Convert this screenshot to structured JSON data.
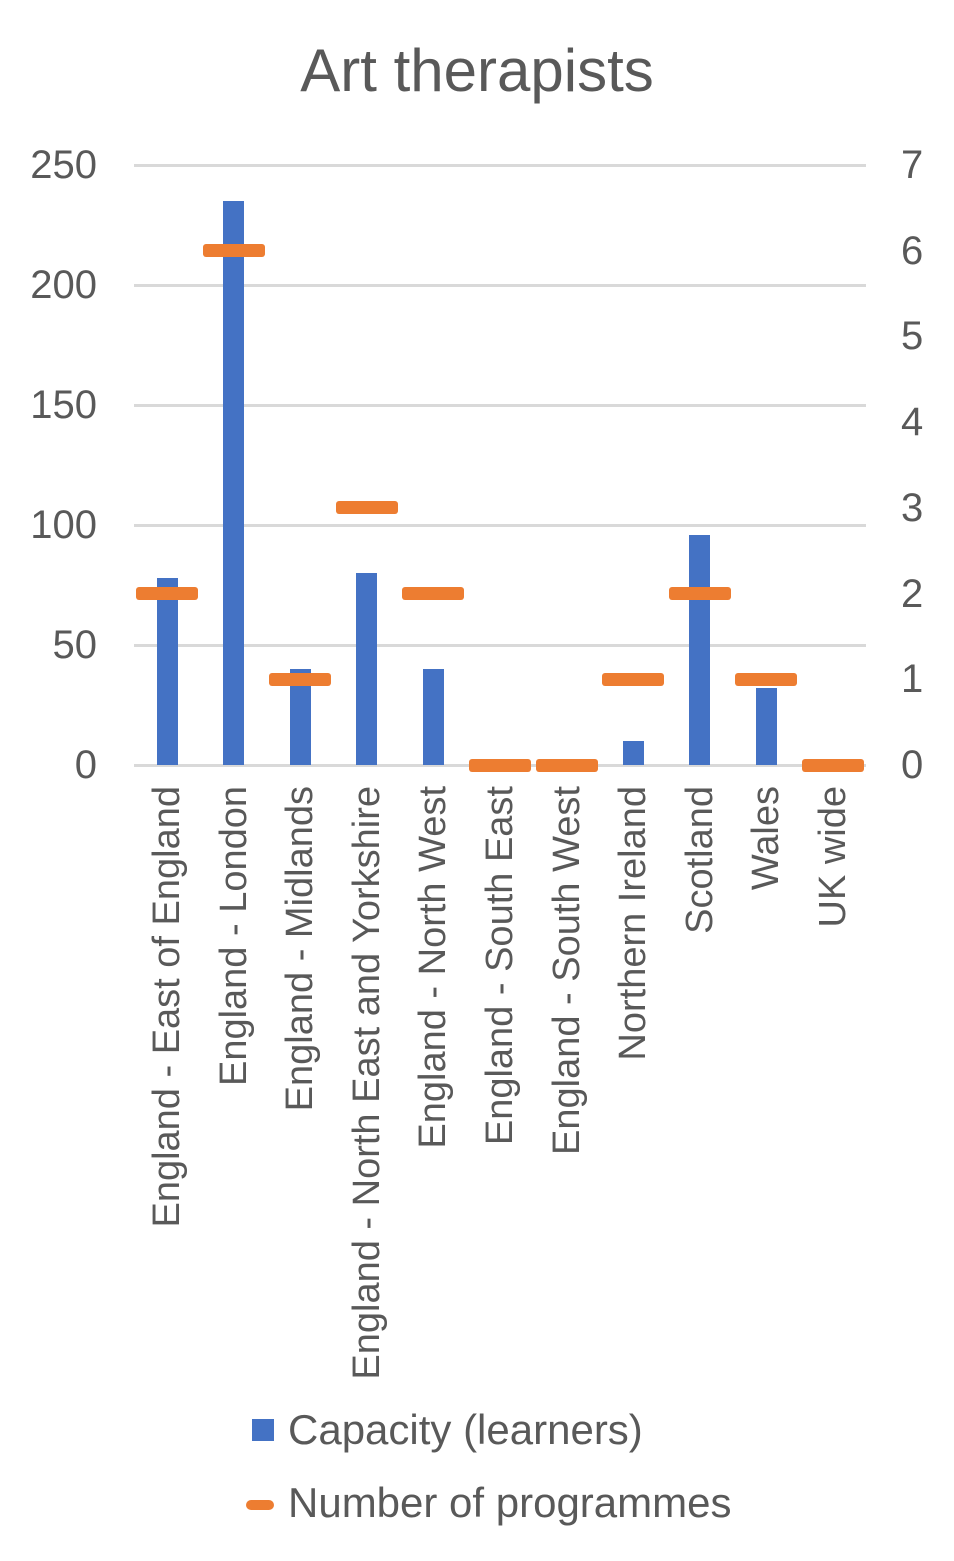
{
  "chart_data": {
    "type": "bar",
    "title": "Art therapists",
    "categories": [
      "England - East of England",
      "England - London",
      "England - Midlands",
      "England - North East and Yorkshire",
      "England - North West",
      "England - South East",
      "England - South West",
      "Northern Ireland",
      "Scotland",
      "Wales",
      "UK wide"
    ],
    "series": [
      {
        "name": "Capacity (learners)",
        "type": "column",
        "axis": "left",
        "color": "#4472C4",
        "values": [
          78,
          235,
          40,
          80,
          40,
          0,
          0,
          10,
          96,
          32,
          0
        ]
      },
      {
        "name": "Number of programmes",
        "type": "dash-marker",
        "axis": "right",
        "color": "#ED7D31",
        "values": [
          2,
          6,
          1,
          3,
          2,
          0,
          0,
          1,
          2,
          1,
          0
        ]
      }
    ],
    "left_axis": {
      "ticks": [
        0,
        50,
        100,
        150,
        200,
        250
      ],
      "min": 0,
      "max": 250
    },
    "right_axis": {
      "ticks": [
        0,
        1,
        2,
        3,
        4,
        5,
        6,
        7
      ],
      "min": 0,
      "max": 7
    },
    "grid": "on",
    "grid_color": "#D9D9D9",
    "text_color": "#595959",
    "legend_position": "bottom-left"
  }
}
